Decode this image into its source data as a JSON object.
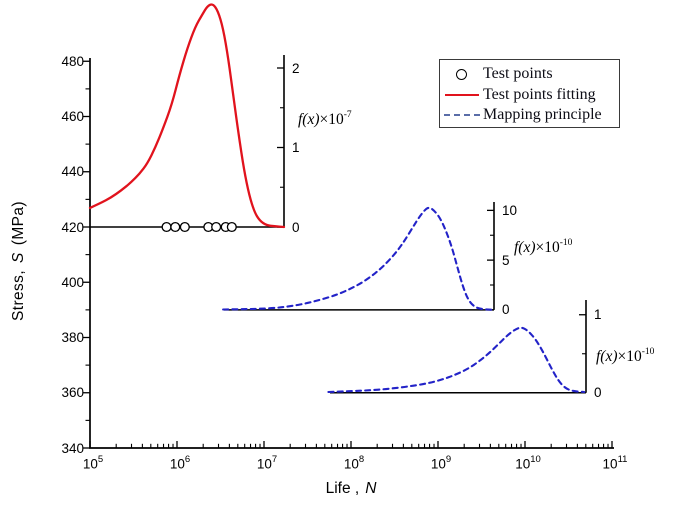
{
  "figure": {
    "xlabel": {
      "prefix": "Life ,",
      "var": "N"
    },
    "ylabel": {
      "prefix": "Stress,",
      "var": "S",
      "suffix": "(MPa)"
    },
    "legend": {
      "items": [
        {
          "marker": "open-circle",
          "label": "Test points"
        },
        {
          "marker": "red-solid-line",
          "label": "Test points fitting"
        },
        {
          "marker": "blue-dashed-line",
          "label": "Mapping principle"
        }
      ]
    }
  },
  "chart_data": {
    "type": "line",
    "title": "",
    "xlabel": "Life, N",
    "ylabel": "Stress, S (MPa)",
    "colors": {
      "red": "#e1131d",
      "blue": "#2323c8",
      "legend_dash": "#5a6da8",
      "axis": "#000000"
    },
    "x_axis": {
      "scale": "log",
      "tick_base": "10",
      "tick_exponents": [
        5,
        6,
        7,
        8,
        9,
        10,
        11
      ],
      "range_log10": [
        5,
        11
      ],
      "grid": false
    },
    "y_axis": {
      "ticks": [
        340,
        360,
        380,
        400,
        420,
        440,
        460,
        480
      ],
      "minor_step": 10,
      "range": [
        340,
        482
      ],
      "grid": false
    },
    "test_points": {
      "stress_mpa": 420,
      "log10_life": [
        5.88,
        5.98,
        6.09,
        6.36,
        6.45,
        6.56,
        6.63
      ]
    },
    "series": [
      {
        "name": "Test points fitting",
        "style": "solid",
        "color_key": "red",
        "baseline_stress": 420,
        "f_axis": {
          "label": {
            "fx": "f(x)",
            "times": "×10",
            "exp": "-7"
          },
          "ticks": [
            0,
            1,
            2
          ],
          "minor_ticks": [
            0.5,
            1.5
          ],
          "range": [
            0,
            2.2
          ]
        },
        "points": [
          [
            5.0,
            0.24
          ],
          [
            5.12,
            0.3
          ],
          [
            5.24,
            0.37
          ],
          [
            5.36,
            0.46
          ],
          [
            5.47,
            0.56
          ],
          [
            5.57,
            0.67
          ],
          [
            5.66,
            0.8
          ],
          [
            5.75,
            1.0
          ],
          [
            5.84,
            1.24
          ],
          [
            5.94,
            1.54
          ],
          [
            6.03,
            1.92
          ],
          [
            6.12,
            2.25
          ],
          [
            6.21,
            2.52
          ],
          [
            6.29,
            2.67
          ],
          [
            6.35,
            2.78
          ],
          [
            6.41,
            2.81
          ],
          [
            6.47,
            2.72
          ],
          [
            6.53,
            2.5
          ],
          [
            6.59,
            2.12
          ],
          [
            6.65,
            1.62
          ],
          [
            6.71,
            1.15
          ],
          [
            6.77,
            0.72
          ],
          [
            6.83,
            0.4
          ],
          [
            6.89,
            0.19
          ],
          [
            6.95,
            0.08
          ],
          [
            7.03,
            0.02
          ],
          [
            7.12,
            0.01
          ],
          [
            7.23,
            0.0
          ]
        ]
      },
      {
        "name": "Mapping principle (S = 390 MPa)",
        "style": "dashed",
        "color_key": "blue",
        "baseline_stress": 390,
        "f_axis": {
          "label": {
            "fx": "f(x)",
            "times": "×10",
            "exp": "-10"
          },
          "ticks": [
            0,
            5,
            10
          ],
          "minor_ticks": [
            2.5,
            7.5
          ],
          "range": [
            0,
            10.8
          ]
        },
        "points": [
          [
            6.53,
            0.04
          ],
          [
            6.75,
            0.07
          ],
          [
            6.95,
            0.11
          ],
          [
            7.15,
            0.2
          ],
          [
            7.33,
            0.4
          ],
          [
            7.5,
            0.68
          ],
          [
            7.64,
            1.0
          ],
          [
            7.78,
            1.35
          ],
          [
            7.9,
            1.75
          ],
          [
            8.01,
            2.2
          ],
          [
            8.12,
            2.7
          ],
          [
            8.23,
            3.35
          ],
          [
            8.33,
            4.05
          ],
          [
            8.43,
            4.9
          ],
          [
            8.53,
            5.9
          ],
          [
            8.62,
            7.0
          ],
          [
            8.71,
            8.3
          ],
          [
            8.79,
            9.4
          ],
          [
            8.86,
            10.15
          ],
          [
            8.9,
            10.3
          ],
          [
            8.95,
            10.05
          ],
          [
            9.02,
            9.3
          ],
          [
            9.09,
            8.0
          ],
          [
            9.16,
            6.3
          ],
          [
            9.22,
            4.4
          ],
          [
            9.28,
            2.5
          ],
          [
            9.34,
            1.1
          ],
          [
            9.41,
            0.35
          ],
          [
            9.49,
            0.08
          ],
          [
            9.62,
            0.02
          ]
        ]
      },
      {
        "name": "Mapping principle (S = 360 MPa)",
        "style": "dashed",
        "color_key": "blue",
        "baseline_stress": 360,
        "f_axis": {
          "label": {
            "fx": "f(x)",
            "times": "×10",
            "exp": "-10"
          },
          "ticks": [
            0,
            1
          ],
          "minor_ticks": [
            0.5
          ],
          "range": [
            0,
            1.15
          ]
        },
        "points": [
          [
            7.74,
            0.01
          ],
          [
            7.97,
            0.02
          ],
          [
            8.2,
            0.03
          ],
          [
            8.43,
            0.05
          ],
          [
            8.66,
            0.08
          ],
          [
            8.88,
            0.12
          ],
          [
            9.05,
            0.17
          ],
          [
            9.2,
            0.23
          ],
          [
            9.35,
            0.31
          ],
          [
            9.48,
            0.41
          ],
          [
            9.6,
            0.52
          ],
          [
            9.71,
            0.64
          ],
          [
            9.81,
            0.75
          ],
          [
            9.9,
            0.82
          ],
          [
            9.96,
            0.84
          ],
          [
            10.03,
            0.8
          ],
          [
            10.12,
            0.69
          ],
          [
            10.21,
            0.52
          ],
          [
            10.3,
            0.32
          ],
          [
            10.38,
            0.16
          ],
          [
            10.46,
            0.06
          ],
          [
            10.55,
            0.02
          ],
          [
            10.68,
            0.01
          ]
        ]
      }
    ]
  }
}
